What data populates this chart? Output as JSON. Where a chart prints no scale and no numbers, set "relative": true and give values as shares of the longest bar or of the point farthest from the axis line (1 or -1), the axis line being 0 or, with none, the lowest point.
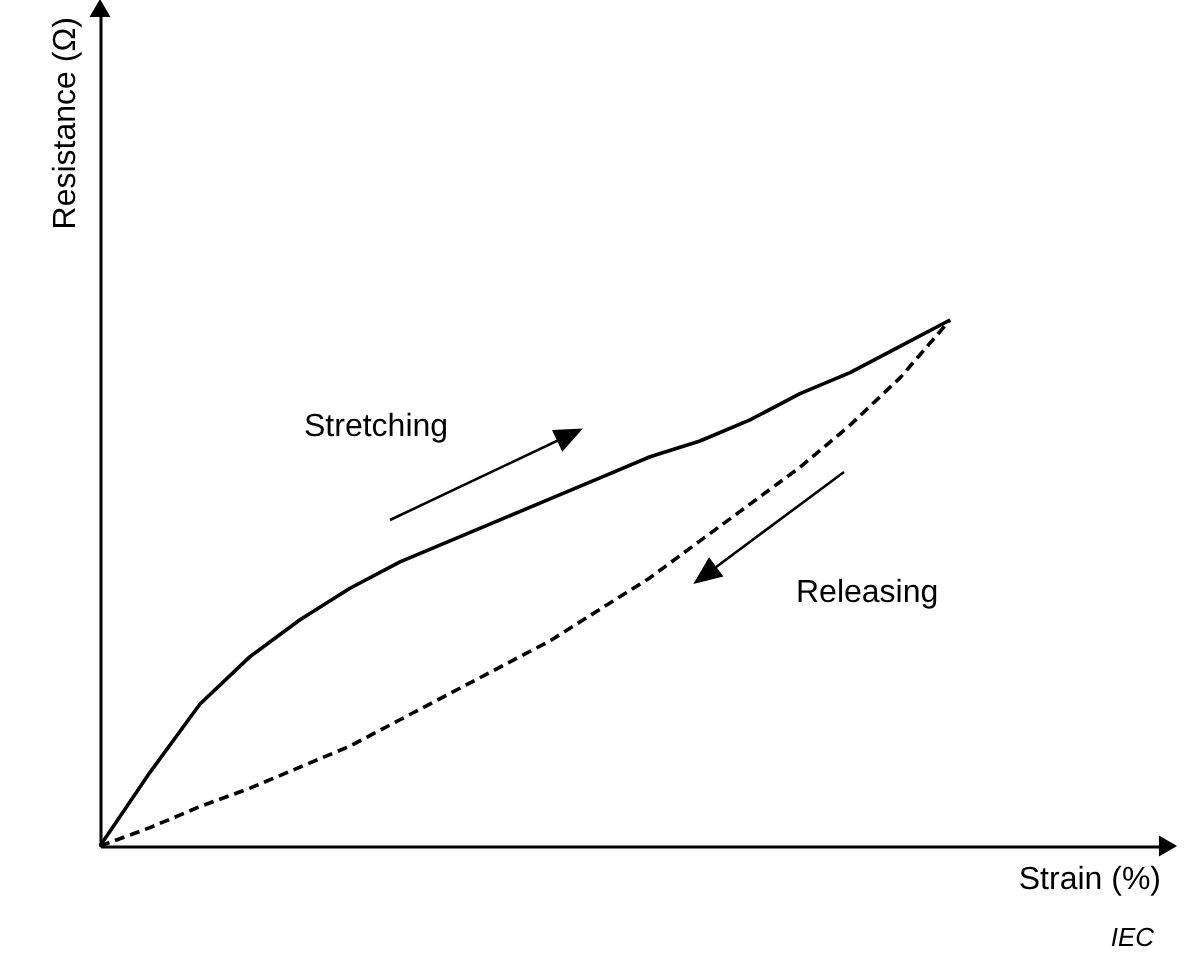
{
  "chart_data": {
    "type": "line",
    "relative": true,
    "xlabel": "Strain (%)",
    "ylabel": "Resistance (Ω)",
    "categories": [
      null,
      null,
      null,
      null,
      null,
      null,
      null,
      null,
      null,
      null,
      null,
      null,
      null,
      null,
      null,
      null,
      null,
      null
    ],
    "series": [
      {
        "color": "#000000",
        "line_style": "solid",
        "values": [
          0,
          0.14,
          0.27,
          0.36,
          0.43,
          0.49,
          0.54,
          0.58,
          0.62,
          0.66,
          0.7,
          0.74,
          0.77,
          0.81,
          0.86,
          0.9,
          0.95,
          1
        ]
      },
      {
        "color": "#000000",
        "line_style": "dashed",
        "values": [
          0,
          0.035,
          0.075,
          0.11,
          0.15,
          0.19,
          0.24,
          0.29,
          0.34,
          0.39,
          0.45,
          0.51,
          0.58,
          0.65,
          0.72,
          0.8,
          0.89,
          1
        ]
      }
    ],
    "annotations": [
      "Stretching",
      "Releasing",
      "IEC"
    ],
    "grid": false,
    "marker": "none"
  }
}
